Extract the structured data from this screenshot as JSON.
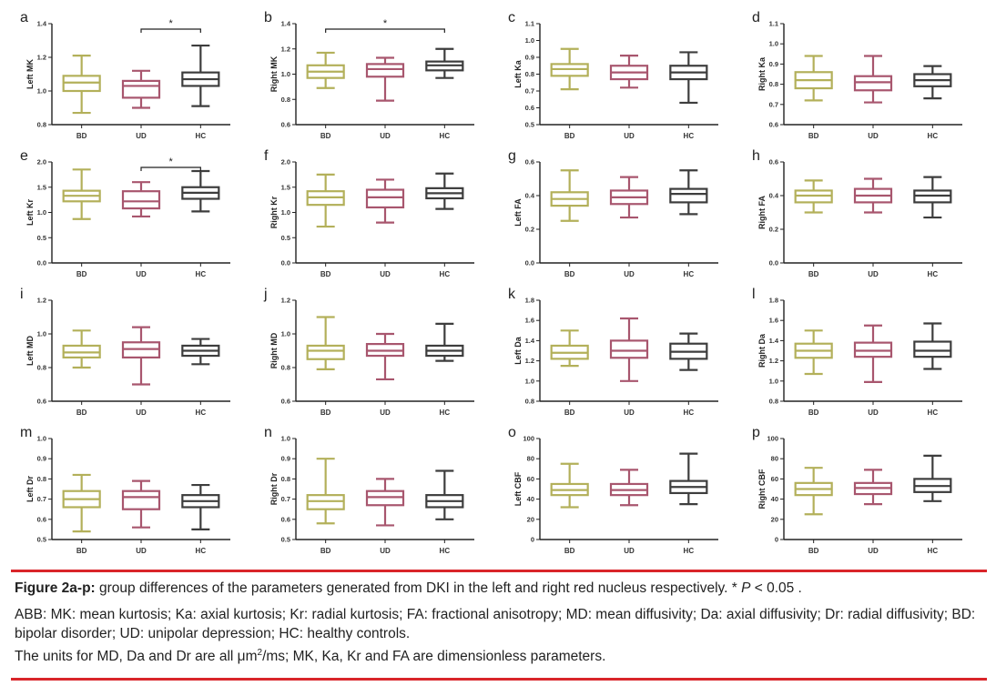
{
  "colors": {
    "BD": "#b3b05a",
    "UD": "#a8566e",
    "HC": "#3d3d3d",
    "rule": "#d9252a",
    "sig": "#222222"
  },
  "caption": {
    "fig_label": "Figure 2a-p:",
    "fig_text": " group differences of the parameters generated from DKI in the left and right red nucleus respectively. * ",
    "p_symbol": "P",
    "p_text": " < 0.05 .",
    "abb": "ABB: MK: mean kurtosis; Ka: axial kurtosis; Kr: radial kurtosis; FA: fractional anisotropy; MD: mean diffusivity; Da: axial diffusivity; Dr: radial diffusivity; BD: bipolar disorder; UD: unipolar depression; HC: healthy controls.",
    "units_pre": "The units for MD, Da and Dr are all μm",
    "units_sup": "2",
    "units_post": "/ms; MK, Ka, Kr and FA are dimensionless parameters."
  },
  "chart_data": [
    {
      "type": "box",
      "panel": "a",
      "ylabel": "Left MK",
      "ylim": [
        0.8,
        1.4
      ],
      "yticks": [
        "0.8",
        "1.0",
        "1.2",
        "1.4"
      ],
      "categories": [
        "BD",
        "UD",
        "HC"
      ],
      "boxes": [
        {
          "min": 0.87,
          "q1": 1.0,
          "median": 1.05,
          "q3": 1.09,
          "max": 1.21
        },
        {
          "min": 0.9,
          "q1": 0.96,
          "median": 1.03,
          "q3": 1.06,
          "max": 1.12
        },
        {
          "min": 0.91,
          "q1": 1.03,
          "median": 1.07,
          "q3": 1.11,
          "max": 1.27
        }
      ],
      "significance": [
        {
          "from": 1,
          "to": 2,
          "label": "*"
        }
      ]
    },
    {
      "type": "box",
      "panel": "b",
      "ylabel": "Right MK",
      "ylim": [
        0.6,
        1.4
      ],
      "yticks": [
        "0.6",
        "0.8",
        "1.0",
        "1.2",
        "1.4"
      ],
      "categories": [
        "BD",
        "UD",
        "HC"
      ],
      "boxes": [
        {
          "min": 0.89,
          "q1": 0.97,
          "median": 1.02,
          "q3": 1.07,
          "max": 1.17
        },
        {
          "min": 0.79,
          "q1": 0.98,
          "median": 1.04,
          "q3": 1.08,
          "max": 1.13
        },
        {
          "min": 0.97,
          "q1": 1.03,
          "median": 1.07,
          "q3": 1.1,
          "max": 1.2
        }
      ],
      "significance": [
        {
          "from": 0,
          "to": 2,
          "label": "*"
        }
      ]
    },
    {
      "type": "box",
      "panel": "c",
      "ylabel": "Left Ka",
      "ylim": [
        0.5,
        1.1
      ],
      "yticks": [
        "0.5",
        "0.6",
        "0.7",
        "0.8",
        "0.9",
        "1.0",
        "1.1"
      ],
      "categories": [
        "BD",
        "UD",
        "HC"
      ],
      "boxes": [
        {
          "min": 0.71,
          "q1": 0.79,
          "median": 0.83,
          "q3": 0.86,
          "max": 0.95
        },
        {
          "min": 0.72,
          "q1": 0.77,
          "median": 0.81,
          "q3": 0.85,
          "max": 0.91
        },
        {
          "min": 0.63,
          "q1": 0.77,
          "median": 0.81,
          "q3": 0.85,
          "max": 0.93
        }
      ],
      "significance": []
    },
    {
      "type": "box",
      "panel": "d",
      "ylabel": "Right Ka",
      "ylim": [
        0.6,
        1.1
      ],
      "yticks": [
        "0.6",
        "0.7",
        "0.8",
        "0.9",
        "1.0",
        "1.1"
      ],
      "categories": [
        "BD",
        "UD",
        "HC"
      ],
      "boxes": [
        {
          "min": 0.72,
          "q1": 0.78,
          "median": 0.82,
          "q3": 0.86,
          "max": 0.94
        },
        {
          "min": 0.71,
          "q1": 0.77,
          "median": 0.81,
          "q3": 0.84,
          "max": 0.94
        },
        {
          "min": 0.73,
          "q1": 0.79,
          "median": 0.82,
          "q3": 0.85,
          "max": 0.89
        }
      ],
      "significance": []
    },
    {
      "type": "box",
      "panel": "e",
      "ylabel": "Left Kr",
      "ylim": [
        0.0,
        2.0
      ],
      "yticks": [
        "0.0",
        "0.5",
        "1.0",
        "1.5",
        "2.0"
      ],
      "categories": [
        "BD",
        "UD",
        "HC"
      ],
      "boxes": [
        {
          "min": 0.87,
          "q1": 1.22,
          "median": 1.33,
          "q3": 1.43,
          "max": 1.85
        },
        {
          "min": 0.92,
          "q1": 1.08,
          "median": 1.22,
          "q3": 1.42,
          "max": 1.6
        },
        {
          "min": 1.02,
          "q1": 1.27,
          "median": 1.39,
          "q3": 1.5,
          "max": 1.82
        }
      ],
      "significance": [
        {
          "from": 1,
          "to": 2,
          "label": "*"
        }
      ]
    },
    {
      "type": "box",
      "panel": "f",
      "ylabel": "Right Kr",
      "ylim": [
        0.0,
        2.0
      ],
      "yticks": [
        "0.0",
        "0.5",
        "1.0",
        "1.5",
        "2.0"
      ],
      "categories": [
        "BD",
        "UD",
        "HC"
      ],
      "boxes": [
        {
          "min": 0.72,
          "q1": 1.15,
          "median": 1.3,
          "q3": 1.42,
          "max": 1.75
        },
        {
          "min": 0.8,
          "q1": 1.1,
          "median": 1.3,
          "q3": 1.45,
          "max": 1.65
        },
        {
          "min": 1.07,
          "q1": 1.28,
          "median": 1.38,
          "q3": 1.48,
          "max": 1.77
        }
      ],
      "significance": []
    },
    {
      "type": "box",
      "panel": "g",
      "ylabel": "Left FA",
      "ylim": [
        0.0,
        0.6
      ],
      "yticks": [
        "0.0",
        "0.2",
        "0.4",
        "0.6"
      ],
      "categories": [
        "BD",
        "UD",
        "HC"
      ],
      "boxes": [
        {
          "min": 0.25,
          "q1": 0.34,
          "median": 0.38,
          "q3": 0.42,
          "max": 0.55
        },
        {
          "min": 0.27,
          "q1": 0.35,
          "median": 0.39,
          "q3": 0.43,
          "max": 0.51
        },
        {
          "min": 0.29,
          "q1": 0.36,
          "median": 0.41,
          "q3": 0.44,
          "max": 0.55
        }
      ],
      "significance": []
    },
    {
      "type": "box",
      "panel": "h",
      "ylabel": "Right FA",
      "ylim": [
        0.0,
        0.6
      ],
      "yticks": [
        "0.0",
        "0.2",
        "0.4",
        "0.6"
      ],
      "categories": [
        "BD",
        "UD",
        "HC"
      ],
      "boxes": [
        {
          "min": 0.3,
          "q1": 0.36,
          "median": 0.4,
          "q3": 0.43,
          "max": 0.49
        },
        {
          "min": 0.3,
          "q1": 0.36,
          "median": 0.4,
          "q3": 0.44,
          "max": 0.5
        },
        {
          "min": 0.27,
          "q1": 0.36,
          "median": 0.4,
          "q3": 0.43,
          "max": 0.51
        }
      ],
      "significance": []
    },
    {
      "type": "box",
      "panel": "i",
      "ylabel": "Left MD",
      "ylim": [
        0.6,
        1.2
      ],
      "yticks": [
        "0.6",
        "0.8",
        "1.0",
        "1.2"
      ],
      "categories": [
        "BD",
        "UD",
        "HC"
      ],
      "boxes": [
        {
          "min": 0.8,
          "q1": 0.86,
          "median": 0.89,
          "q3": 0.93,
          "max": 1.02
        },
        {
          "min": 0.7,
          "q1": 0.86,
          "median": 0.91,
          "q3": 0.95,
          "max": 1.04
        },
        {
          "min": 0.82,
          "q1": 0.87,
          "median": 0.9,
          "q3": 0.93,
          "max": 0.97
        }
      ],
      "significance": []
    },
    {
      "type": "box",
      "panel": "j",
      "ylabel": "Right MD",
      "ylim": [
        0.6,
        1.2
      ],
      "yticks": [
        "0.6",
        "0.8",
        "1.0",
        "1.2"
      ],
      "categories": [
        "BD",
        "UD",
        "HC"
      ],
      "boxes": [
        {
          "min": 0.79,
          "q1": 0.85,
          "median": 0.9,
          "q3": 0.93,
          "max": 1.1
        },
        {
          "min": 0.73,
          "q1": 0.87,
          "median": 0.9,
          "q3": 0.94,
          "max": 1.0
        },
        {
          "min": 0.84,
          "q1": 0.87,
          "median": 0.9,
          "q3": 0.93,
          "max": 1.06
        }
      ],
      "significance": []
    },
    {
      "type": "box",
      "panel": "k",
      "ylabel": "Left Da",
      "ylim": [
        0.8,
        1.8
      ],
      "yticks": [
        "0.8",
        "1.0",
        "1.2",
        "1.4",
        "1.6",
        "1.8"
      ],
      "categories": [
        "BD",
        "UD",
        "HC"
      ],
      "boxes": [
        {
          "min": 1.15,
          "q1": 1.22,
          "median": 1.28,
          "q3": 1.35,
          "max": 1.5
        },
        {
          "min": 1.0,
          "q1": 1.23,
          "median": 1.3,
          "q3": 1.4,
          "max": 1.62
        },
        {
          "min": 1.11,
          "q1": 1.22,
          "median": 1.29,
          "q3": 1.37,
          "max": 1.47
        }
      ],
      "significance": []
    },
    {
      "type": "box",
      "panel": "l",
      "ylabel": "Right Da",
      "ylim": [
        0.8,
        1.8
      ],
      "yticks": [
        "0.8",
        "1.0",
        "1.2",
        "1.4",
        "1.6",
        "1.8"
      ],
      "categories": [
        "BD",
        "UD",
        "HC"
      ],
      "boxes": [
        {
          "min": 1.07,
          "q1": 1.23,
          "median": 1.3,
          "q3": 1.37,
          "max": 1.5
        },
        {
          "min": 0.99,
          "q1": 1.24,
          "median": 1.3,
          "q3": 1.38,
          "max": 1.55
        },
        {
          "min": 1.12,
          "q1": 1.24,
          "median": 1.3,
          "q3": 1.39,
          "max": 1.57
        }
      ],
      "significance": []
    },
    {
      "type": "box",
      "panel": "m",
      "ylabel": "Left Dr",
      "ylim": [
        0.5,
        1.0
      ],
      "yticks": [
        "0.5",
        "0.6",
        "0.7",
        "0.8",
        "0.9",
        "1.0"
      ],
      "categories": [
        "BD",
        "UD",
        "HC"
      ],
      "boxes": [
        {
          "min": 0.54,
          "q1": 0.66,
          "median": 0.7,
          "q3": 0.74,
          "max": 0.82
        },
        {
          "min": 0.56,
          "q1": 0.65,
          "median": 0.71,
          "q3": 0.74,
          "max": 0.79
        },
        {
          "min": 0.55,
          "q1": 0.66,
          "median": 0.69,
          "q3": 0.72,
          "max": 0.77
        }
      ],
      "significance": []
    },
    {
      "type": "box",
      "panel": "n",
      "ylabel": "Right Dr",
      "ylim": [
        0.5,
        1.0
      ],
      "yticks": [
        "0.5",
        "0.6",
        "0.7",
        "0.8",
        "0.9",
        "1.0"
      ],
      "categories": [
        "BD",
        "UD",
        "HC"
      ],
      "boxes": [
        {
          "min": 0.58,
          "q1": 0.65,
          "median": 0.69,
          "q3": 0.72,
          "max": 0.9
        },
        {
          "min": 0.57,
          "q1": 0.67,
          "median": 0.71,
          "q3": 0.74,
          "max": 0.8
        },
        {
          "min": 0.6,
          "q1": 0.66,
          "median": 0.69,
          "q3": 0.72,
          "max": 0.84
        }
      ],
      "significance": []
    },
    {
      "type": "box",
      "panel": "o",
      "ylabel": "Left CBF",
      "ylim": [
        0,
        100
      ],
      "yticks": [
        "0",
        "20",
        "40",
        "60",
        "80",
        "100"
      ],
      "categories": [
        "BD",
        "UD",
        "HC"
      ],
      "boxes": [
        {
          "min": 32,
          "q1": 44,
          "median": 49,
          "q3": 55,
          "max": 75
        },
        {
          "min": 34,
          "q1": 44,
          "median": 49,
          "q3": 55,
          "max": 69
        },
        {
          "min": 35,
          "q1": 46,
          "median": 52,
          "q3": 58,
          "max": 85
        }
      ],
      "significance": []
    },
    {
      "type": "box",
      "panel": "p",
      "ylabel": "Right CBF",
      "ylim": [
        0,
        100
      ],
      "yticks": [
        "0",
        "20",
        "40",
        "60",
        "80",
        "100"
      ],
      "categories": [
        "BD",
        "UD",
        "HC"
      ],
      "boxes": [
        {
          "min": 25,
          "q1": 44,
          "median": 50,
          "q3": 56,
          "max": 71
        },
        {
          "min": 35,
          "q1": 45,
          "median": 51,
          "q3": 56,
          "max": 69
        },
        {
          "min": 38,
          "q1": 47,
          "median": 53,
          "q3": 60,
          "max": 83
        }
      ],
      "significance": []
    }
  ]
}
